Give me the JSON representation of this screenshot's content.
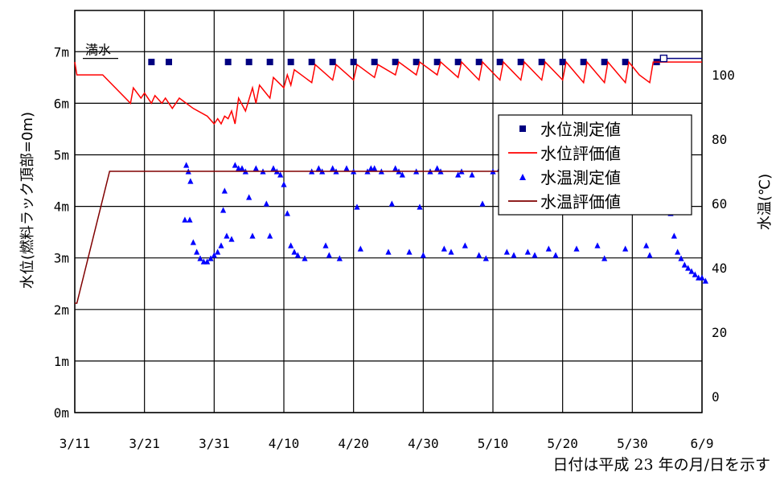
{
  "chart_data": {
    "type": "line",
    "x_ticks": [
      "3/11",
      "3/21",
      "3/31",
      "4/10",
      "4/20",
      "4/30",
      "5/10",
      "5/20",
      "5/30",
      "6/9"
    ],
    "y_left_ticks": [
      "0m",
      "1m",
      "2m",
      "3m",
      "4m",
      "5m",
      "6m",
      "7m"
    ],
    "y_left_label": "水位(燃料ラック頂部=0m)",
    "y_right_ticks": [
      "0",
      "20",
      "40",
      "60",
      "80",
      "100"
    ],
    "y_right_label": "水温(℃)",
    "xlim": [
      0,
      90
    ],
    "ylim_left": [
      0,
      7.8
    ],
    "ylim_right": [
      -5,
      120
    ],
    "full_water_label": "満水",
    "full_water_level": 6.87,
    "grid": true,
    "legend_position": "right",
    "series": [
      {
        "name": "水位測定値",
        "kind": "points",
        "marker": "square",
        "color": "#000080",
        "axis": "left",
        "points": [
          [
            11,
            6.8
          ],
          [
            13.5,
            6.8
          ],
          [
            22,
            6.8
          ],
          [
            25,
            6.8
          ],
          [
            28,
            6.8
          ],
          [
            31,
            6.8
          ],
          [
            34,
            6.8
          ],
          [
            37,
            6.8
          ],
          [
            40,
            6.8
          ],
          [
            43,
            6.8
          ],
          [
            46,
            6.8
          ],
          [
            49,
            6.8
          ],
          [
            52,
            6.8
          ],
          [
            55,
            6.8
          ],
          [
            58,
            6.8
          ],
          [
            61,
            6.8
          ],
          [
            64,
            6.8
          ],
          [
            67,
            6.8
          ],
          [
            70,
            6.8
          ],
          [
            73,
            6.8
          ],
          [
            76,
            6.8
          ],
          [
            79,
            6.8
          ],
          [
            83.5,
            6.8
          ]
        ]
      },
      {
        "name": "水位評価値",
        "kind": "line",
        "color": "#ff0000",
        "axis": "left",
        "points": [
          [
            0,
            6.8
          ],
          [
            0.3,
            6.55
          ],
          [
            4,
            6.55
          ],
          [
            8,
            6.0
          ],
          [
            8.4,
            6.3
          ],
          [
            9.5,
            6.1
          ],
          [
            10,
            6.2
          ],
          [
            11,
            6.0
          ],
          [
            11.5,
            6.15
          ],
          [
            12.5,
            6.0
          ],
          [
            13,
            6.1
          ],
          [
            14,
            5.9
          ],
          [
            15,
            6.1
          ],
          [
            17,
            5.9
          ],
          [
            19,
            5.75
          ],
          [
            20,
            5.6
          ],
          [
            20.5,
            5.7
          ],
          [
            21,
            5.6
          ],
          [
            21.5,
            5.75
          ],
          [
            22,
            5.7
          ],
          [
            22.5,
            5.85
          ],
          [
            23,
            5.6
          ],
          [
            23.5,
            6.1
          ],
          [
            24.5,
            5.85
          ],
          [
            25.5,
            6.3
          ],
          [
            26,
            6.0
          ],
          [
            26.5,
            6.35
          ],
          [
            28,
            6.1
          ],
          [
            28.5,
            6.5
          ],
          [
            30,
            6.3
          ],
          [
            30.5,
            6.55
          ],
          [
            31,
            6.35
          ],
          [
            31.5,
            6.65
          ],
          [
            34,
            6.4
          ],
          [
            34.5,
            6.75
          ],
          [
            37,
            6.45
          ],
          [
            37.5,
            6.75
          ],
          [
            40,
            6.45
          ],
          [
            40.5,
            6.75
          ],
          [
            43,
            6.5
          ],
          [
            43.5,
            6.75
          ],
          [
            46,
            6.55
          ],
          [
            46.5,
            6.8
          ],
          [
            49,
            6.55
          ],
          [
            49.5,
            6.8
          ],
          [
            52,
            6.55
          ],
          [
            52.5,
            6.8
          ],
          [
            55,
            6.5
          ],
          [
            55.5,
            6.8
          ],
          [
            58,
            6.45
          ],
          [
            58.5,
            6.8
          ],
          [
            61,
            6.45
          ],
          [
            61.5,
            6.8
          ],
          [
            64,
            6.45
          ],
          [
            64.5,
            6.8
          ],
          [
            67,
            6.45
          ],
          [
            67.5,
            6.8
          ],
          [
            70,
            6.45
          ],
          [
            70.5,
            6.8
          ],
          [
            73,
            6.4
          ],
          [
            73.5,
            6.8
          ],
          [
            76,
            6.4
          ],
          [
            76.5,
            6.8
          ],
          [
            79,
            6.4
          ],
          [
            79.5,
            6.8
          ],
          [
            81,
            6.55
          ],
          [
            82.5,
            6.4
          ],
          [
            83,
            6.8
          ],
          [
            90,
            6.8
          ]
        ]
      },
      {
        "name": "水温測定値",
        "kind": "points",
        "marker": "triangle",
        "color": "#0000ff",
        "axis": "right",
        "points": [
          [
            16,
            72
          ],
          [
            16.3,
            70
          ],
          [
            16.6,
            67
          ],
          [
            15.8,
            55
          ],
          [
            16.5,
            55
          ],
          [
            17,
            48
          ],
          [
            17.5,
            45
          ],
          [
            18,
            43
          ],
          [
            18.5,
            42
          ],
          [
            19,
            42
          ],
          [
            19.5,
            43
          ],
          [
            20,
            44
          ],
          [
            20.5,
            45
          ],
          [
            21,
            47
          ],
          [
            21.3,
            58
          ],
          [
            21.5,
            64
          ],
          [
            21.8,
            50
          ],
          [
            22.5,
            49
          ],
          [
            23,
            72
          ],
          [
            23.5,
            71
          ],
          [
            24,
            71
          ],
          [
            24.5,
            70
          ],
          [
            25,
            62
          ],
          [
            25.5,
            50
          ],
          [
            26,
            71
          ],
          [
            27,
            70
          ],
          [
            27.5,
            60
          ],
          [
            28,
            50
          ],
          [
            28.5,
            71
          ],
          [
            29,
            70
          ],
          [
            29.5,
            69
          ],
          [
            30,
            66
          ],
          [
            30.5,
            57
          ],
          [
            31,
            47
          ],
          [
            31.5,
            45
          ],
          [
            32,
            44
          ],
          [
            33,
            43
          ],
          [
            34,
            70
          ],
          [
            35,
            71
          ],
          [
            35.5,
            70
          ],
          [
            36,
            47
          ],
          [
            36.5,
            44
          ],
          [
            37,
            71
          ],
          [
            37.5,
            70
          ],
          [
            38,
            43
          ],
          [
            39,
            71
          ],
          [
            40,
            70
          ],
          [
            40.5,
            59
          ],
          [
            41,
            46
          ],
          [
            42,
            70
          ],
          [
            42.5,
            71
          ],
          [
            43,
            71
          ],
          [
            44,
            70
          ],
          [
            45,
            45
          ],
          [
            45.5,
            60
          ],
          [
            46,
            71
          ],
          [
            46.5,
            70
          ],
          [
            47,
            69
          ],
          [
            48,
            45
          ],
          [
            49,
            70
          ],
          [
            49.5,
            59
          ],
          [
            50,
            44
          ],
          [
            51,
            70
          ],
          [
            52,
            71
          ],
          [
            52.5,
            70
          ],
          [
            53,
            46
          ],
          [
            54,
            45
          ],
          [
            55,
            69
          ],
          [
            55.5,
            70
          ],
          [
            56,
            47
          ],
          [
            57,
            69
          ],
          [
            58,
            44
          ],
          [
            58.5,
            60
          ],
          [
            59,
            43
          ],
          [
            60,
            70
          ],
          [
            61,
            71
          ],
          [
            61.5,
            70
          ],
          [
            62,
            45
          ],
          [
            63,
            44
          ],
          [
            64,
            70
          ],
          [
            64.5,
            60
          ],
          [
            65,
            45
          ],
          [
            66,
            44
          ],
          [
            67,
            70
          ],
          [
            67.5,
            69
          ],
          [
            68,
            46
          ],
          [
            69,
            44
          ],
          [
            70,
            70
          ],
          [
            70.5,
            69
          ],
          [
            71,
            60
          ],
          [
            72,
            46
          ],
          [
            73,
            70
          ],
          [
            73.5,
            71
          ],
          [
            74,
            70
          ],
          [
            75,
            47
          ],
          [
            76,
            43
          ],
          [
            76.5,
            69
          ],
          [
            77,
            70
          ],
          [
            77.5,
            69
          ],
          [
            78,
            63
          ],
          [
            79,
            46
          ],
          [
            80,
            70
          ],
          [
            80.5,
            69
          ],
          [
            81,
            68
          ],
          [
            82,
            47
          ],
          [
            82.5,
            44
          ],
          [
            83,
            70
          ],
          [
            83.5,
            71
          ],
          [
            84,
            70
          ],
          [
            84.5,
            68
          ],
          [
            85,
            63
          ],
          [
            85.5,
            57
          ],
          [
            86,
            50
          ],
          [
            86.5,
            45
          ],
          [
            87,
            43
          ],
          [
            87.5,
            41
          ],
          [
            88,
            40
          ],
          [
            88.5,
            39
          ],
          [
            89,
            38
          ],
          [
            89.5,
            37
          ],
          [
            90,
            37
          ],
          [
            90.5,
            36
          ]
        ]
      },
      {
        "name": "水温評価値",
        "kind": "line",
        "color": "#800000",
        "axis": "right",
        "points": [
          [
            0,
            29
          ],
          [
            0.3,
            29
          ],
          [
            5,
            70
          ],
          [
            84,
            70
          ],
          [
            85,
            70
          ]
        ]
      }
    ]
  },
  "footer_note": "日付は平成 23 年の月/日を示す"
}
